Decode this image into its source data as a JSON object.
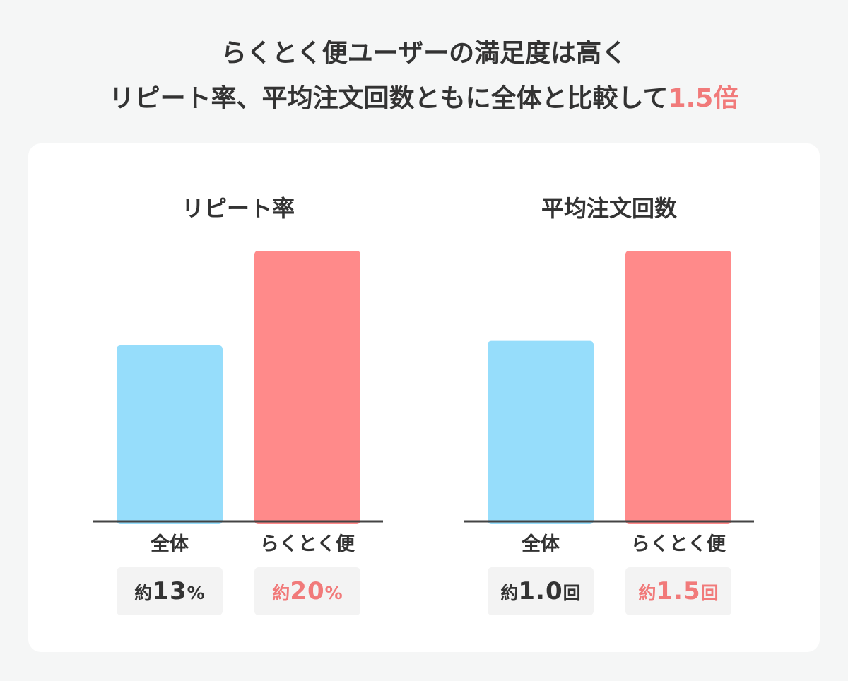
{
  "headline": {
    "line1": "らくとく便ユーザーの満足度は高く",
    "line2_text": "リピート率、平均注文回数ともに全体と比較して",
    "line2_accent": "1.5倍"
  },
  "colors": {
    "overall": "#96ddfb",
    "rakutoku": "#ff8a8a",
    "accent_text": "#f17a7a",
    "text": "#333333",
    "axis": "#444444"
  },
  "chart_data": [
    {
      "type": "bar",
      "title": "リピート率",
      "categories": [
        "全体",
        "らくとく便"
      ],
      "values": [
        13,
        20
      ],
      "ylim": [
        0,
        20
      ],
      "grid": false,
      "value_labels": [
        {
          "prefix": "約",
          "number": "13",
          "unit": "%"
        },
        {
          "prefix": "約",
          "number": "20",
          "unit": "%"
        }
      ]
    },
    {
      "type": "bar",
      "title": "平均注文回数",
      "categories": [
        "全体",
        "らくとく便"
      ],
      "values": [
        1.0,
        1.5
      ],
      "ylim": [
        0,
        1.5
      ],
      "grid": false,
      "value_labels": [
        {
          "prefix": "約",
          "number": "1.0",
          "unit": "回"
        },
        {
          "prefix": "約",
          "number": "1.5",
          "unit": "回"
        }
      ]
    }
  ]
}
